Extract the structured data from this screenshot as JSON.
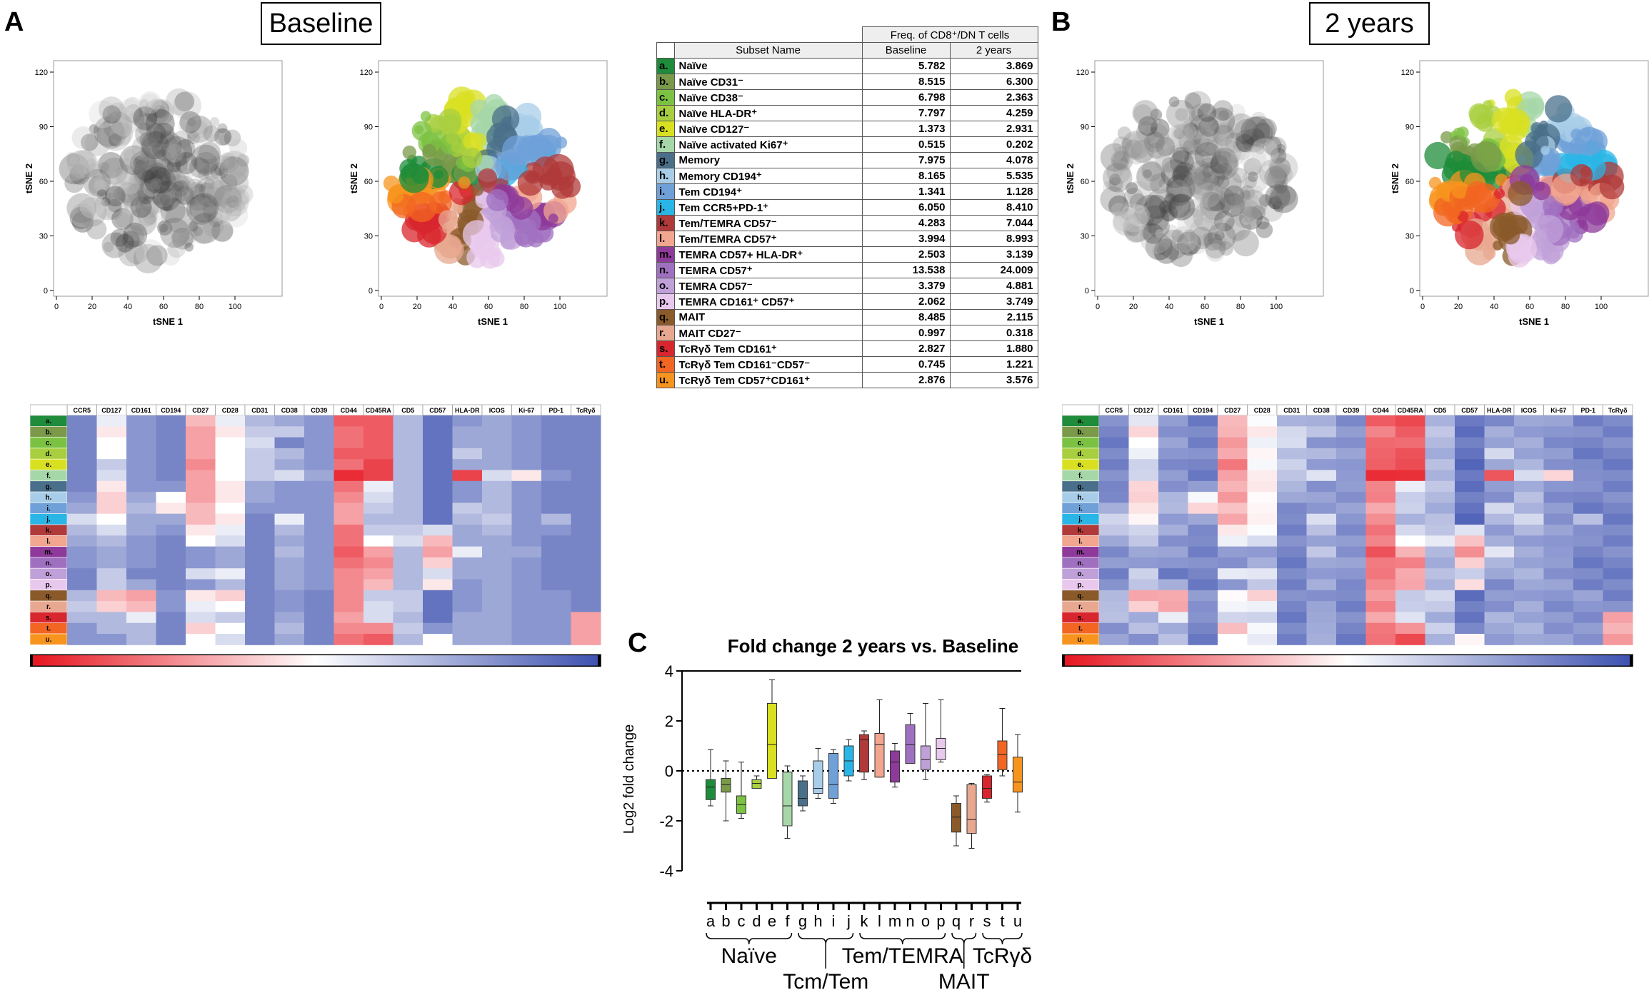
{
  "panels": {
    "A": {
      "letter": "A",
      "title": "Baseline"
    },
    "B": {
      "letter": "B",
      "title": "2 years"
    },
    "C": {
      "letter": "C"
    }
  },
  "tsne": {
    "xlabel": "tSNE 1",
    "ylabel": "tSNE 2",
    "xticks": [
      "0",
      "20",
      "40",
      "60",
      "80",
      "100"
    ],
    "yticks": [
      "0",
      "30",
      "60",
      "90",
      "120"
    ]
  },
  "table": {
    "header_group": "Freq. of CD8⁺/DN T cells",
    "col_subset": "Subset Name",
    "col_baseline": "Baseline",
    "col_2y": "2 years",
    "rows": [
      {
        "key": "a.",
        "name": "Naïve",
        "baseline": "5.782",
        "two": "3.869",
        "color": "#1e8c3a"
      },
      {
        "key": "b.",
        "name": "Naïve CD31⁻",
        "baseline": "8.515",
        "two": "6.300",
        "color": "#7a9a4a"
      },
      {
        "key": "c.",
        "name": "Naïve CD38⁻",
        "baseline": "6.798",
        "two": "2.363",
        "color": "#7cc242"
      },
      {
        "key": "d.",
        "name": "Naïve HLA-DR⁺",
        "baseline": "7.797",
        "two": "4.259",
        "color": "#a8cf3f"
      },
      {
        "key": "e.",
        "name": "Naïve CD127⁻",
        "baseline": "1.373",
        "two": "2.931",
        "color": "#d9e021"
      },
      {
        "key": "f.",
        "name": "Naïve activated Ki67⁺",
        "baseline": "0.515",
        "two": "0.202",
        "color": "#a6d7a8"
      },
      {
        "key": "g.",
        "name": "Memory",
        "baseline": "7.975",
        "two": "4.078",
        "color": "#4a6f8a"
      },
      {
        "key": "h.",
        "name": "Memory CD194⁺",
        "baseline": "8.165",
        "two": "5.535",
        "color": "#a8cde8"
      },
      {
        "key": "i.",
        "name": "Tem CD194⁺",
        "baseline": "1.341",
        "two": "1.128",
        "color": "#6fa0d8"
      },
      {
        "key": "j.",
        "name": "Tem CCR5+PD-1⁺",
        "baseline": "6.050",
        "two": "8.410",
        "color": "#29b6e6"
      },
      {
        "key": "k.",
        "name": "Tem/TEMRA CD57⁻",
        "baseline": "4.283",
        "two": "7.044",
        "color": "#b03a3a"
      },
      {
        "key": "l.",
        "name": "Tem/TEMRA CD57⁺",
        "baseline": "3.994",
        "two": "8.993",
        "color": "#f2a58f"
      },
      {
        "key": "m.",
        "name": "TEMRA CD57+ HLA-DR⁺",
        "baseline": "2.503",
        "two": "3.139",
        "color": "#8e3a9a"
      },
      {
        "key": "n.",
        "name": "TEMRA CD57⁺",
        "baseline": "13.538",
        "two": "24.009",
        "color": "#a070c0"
      },
      {
        "key": "o.",
        "name": "TEMRA CD57⁻",
        "baseline": "3.379",
        "two": "4.881",
        "color": "#c0a0d8"
      },
      {
        "key": "p.",
        "name": "TEMRA CD161⁺ CD57⁺",
        "baseline": "2.062",
        "two": "3.749",
        "color": "#e8c8ec"
      },
      {
        "key": "q.",
        "name": "MAIT",
        "baseline": "8.485",
        "two": "2.115",
        "color": "#8a5a2a"
      },
      {
        "key": "r.",
        "name": "MAIT CD27⁻",
        "baseline": "0.997",
        "two": "0.318",
        "color": "#e8a890"
      },
      {
        "key": "s.",
        "name": "TcRγδ Tem CD161⁺",
        "baseline": "2.827",
        "two": "1.880",
        "color": "#d8262e"
      },
      {
        "key": "t.",
        "name": "TcRγδ Tem CD161⁻CD57⁻",
        "baseline": "0.745",
        "two": "1.221",
        "color": "#f26522"
      },
      {
        "key": "u.",
        "name": "TcRγδ Tem CD57⁺CD161⁺",
        "baseline": "2.876",
        "two": "3.576",
        "color": "#f7941d"
      }
    ]
  },
  "heatmap": {
    "markers": [
      "CCR5",
      "CD127",
      "CD161",
      "CD194",
      "CD27",
      "CD28",
      "CD31",
      "CD38",
      "CD39",
      "CD44",
      "CD45RA",
      "CD5",
      "CD57",
      "HLA-DR",
      "ICOS",
      "Ki-67",
      "PD-1",
      "TcRγδ"
    ],
    "rows": [
      "a.",
      "b.",
      "c.",
      "d.",
      "e.",
      "f.",
      "g.",
      "h.",
      "i.",
      "j.",
      "k.",
      "l.",
      "m.",
      "n.",
      "o.",
      "p.",
      "q.",
      "r.",
      "s.",
      "t.",
      "u."
    ],
    "values_baseline": [
      [
        0.85,
        0.55,
        0.8,
        0.85,
        0.35,
        0.55,
        0.7,
        0.75,
        0.8,
        0.15,
        0.15,
        0.7,
        0.9,
        0.8,
        0.75,
        0.8,
        0.85,
        0.85
      ],
      [
        0.85,
        0.45,
        0.8,
        0.85,
        0.3,
        0.45,
        0.65,
        0.65,
        0.8,
        0.2,
        0.15,
        0.7,
        0.9,
        0.75,
        0.75,
        0.8,
        0.85,
        0.85
      ],
      [
        0.85,
        0.5,
        0.8,
        0.85,
        0.3,
        0.5,
        0.6,
        0.85,
        0.8,
        0.2,
        0.15,
        0.7,
        0.9,
        0.75,
        0.75,
        0.8,
        0.85,
        0.85
      ],
      [
        0.85,
        0.5,
        0.8,
        0.85,
        0.3,
        0.5,
        0.65,
        0.7,
        0.8,
        0.15,
        0.15,
        0.7,
        0.9,
        0.65,
        0.75,
        0.8,
        0.85,
        0.85
      ],
      [
        0.85,
        0.65,
        0.8,
        0.85,
        0.25,
        0.5,
        0.65,
        0.75,
        0.8,
        0.2,
        0.1,
        0.7,
        0.9,
        0.75,
        0.75,
        0.8,
        0.85,
        0.85
      ],
      [
        0.85,
        0.6,
        0.8,
        0.85,
        0.3,
        0.5,
        0.65,
        0.6,
        0.75,
        0.05,
        0.1,
        0.7,
        0.9,
        0.1,
        0.6,
        0.45,
        0.8,
        0.85
      ],
      [
        0.85,
        0.45,
        0.8,
        0.8,
        0.3,
        0.45,
        0.75,
        0.8,
        0.8,
        0.2,
        0.55,
        0.7,
        0.9,
        0.8,
        0.7,
        0.8,
        0.85,
        0.85
      ],
      [
        0.8,
        0.4,
        0.75,
        0.5,
        0.3,
        0.45,
        0.75,
        0.8,
        0.8,
        0.25,
        0.6,
        0.7,
        0.9,
        0.8,
        0.7,
        0.8,
        0.85,
        0.85
      ],
      [
        0.75,
        0.4,
        0.7,
        0.45,
        0.35,
        0.5,
        0.8,
        0.8,
        0.8,
        0.3,
        0.65,
        0.7,
        0.9,
        0.65,
        0.7,
        0.8,
        0.85,
        0.85
      ],
      [
        0.6,
        0.5,
        0.75,
        0.75,
        0.35,
        0.45,
        0.85,
        0.55,
        0.8,
        0.3,
        0.7,
        0.7,
        0.9,
        0.7,
        0.65,
        0.8,
        0.7,
        0.85
      ],
      [
        0.7,
        0.6,
        0.75,
        0.8,
        0.45,
        0.55,
        0.85,
        0.7,
        0.8,
        0.2,
        0.65,
        0.65,
        0.6,
        0.75,
        0.7,
        0.8,
        0.8,
        0.85
      ],
      [
        0.75,
        0.7,
        0.8,
        0.85,
        0.5,
        0.6,
        0.85,
        0.75,
        0.8,
        0.2,
        0.5,
        0.6,
        0.35,
        0.75,
        0.75,
        0.8,
        0.85,
        0.85
      ],
      [
        0.8,
        0.75,
        0.8,
        0.85,
        0.8,
        0.75,
        0.85,
        0.7,
        0.8,
        0.15,
        0.3,
        0.7,
        0.3,
        0.55,
        0.75,
        0.75,
        0.85,
        0.85
      ],
      [
        0.8,
        0.75,
        0.8,
        0.85,
        0.8,
        0.75,
        0.85,
        0.75,
        0.8,
        0.2,
        0.25,
        0.7,
        0.4,
        0.75,
        0.75,
        0.8,
        0.85,
        0.85
      ],
      [
        0.85,
        0.65,
        0.85,
        0.85,
        0.6,
        0.55,
        0.85,
        0.75,
        0.8,
        0.25,
        0.3,
        0.7,
        0.6,
        0.75,
        0.75,
        0.8,
        0.85,
        0.85
      ],
      [
        0.85,
        0.65,
        0.75,
        0.85,
        0.8,
        0.7,
        0.85,
        0.75,
        0.8,
        0.25,
        0.35,
        0.7,
        0.45,
        0.8,
        0.75,
        0.8,
        0.85,
        0.85
      ],
      [
        0.7,
        0.35,
        0.3,
        0.8,
        0.45,
        0.4,
        0.85,
        0.8,
        0.85,
        0.25,
        0.65,
        0.65,
        0.9,
        0.8,
        0.75,
        0.8,
        0.8,
        0.85
      ],
      [
        0.65,
        0.4,
        0.35,
        0.8,
        0.55,
        0.5,
        0.85,
        0.8,
        0.85,
        0.25,
        0.6,
        0.65,
        0.9,
        0.8,
        0.75,
        0.8,
        0.8,
        0.85
      ],
      [
        0.7,
        0.7,
        0.55,
        0.85,
        0.6,
        0.65,
        0.85,
        0.75,
        0.85,
        0.3,
        0.6,
        0.7,
        0.9,
        0.75,
        0.75,
        0.8,
        0.8,
        0.3
      ],
      [
        0.8,
        0.7,
        0.7,
        0.85,
        0.4,
        0.5,
        0.85,
        0.7,
        0.85,
        0.25,
        0.25,
        0.65,
        0.8,
        0.75,
        0.75,
        0.8,
        0.8,
        0.3
      ],
      [
        0.8,
        0.8,
        0.7,
        0.85,
        0.5,
        0.6,
        0.85,
        0.75,
        0.85,
        0.2,
        0.15,
        0.7,
        0.5,
        0.75,
        0.75,
        0.8,
        0.8,
        0.3
      ]
    ]
  },
  "chart_data": {
    "type": "box",
    "title": "Fold change 2 years vs. Baseline",
    "ylabel": "Log2 fold change",
    "ylim": [
      -4,
      4
    ],
    "yticks": [
      "4",
      "2",
      "0",
      "-2",
      "-4"
    ],
    "categories": [
      "a",
      "b",
      "c",
      "d",
      "e",
      "f",
      "g",
      "h",
      "i",
      "j",
      "k",
      "l",
      "m",
      "n",
      "o",
      "p",
      "q",
      "r",
      "s",
      "t",
      "u"
    ],
    "boxes": [
      {
        "min": -1.4,
        "q1": -1.15,
        "median": -0.65,
        "q3": -0.35,
        "max": 0.85
      },
      {
        "min": -2.0,
        "q1": -0.85,
        "median": -0.55,
        "q3": -0.3,
        "max": 0.4
      },
      {
        "min": -1.9,
        "q1": -1.7,
        "median": -1.35,
        "q3": -1.0,
        "max": 0.35
      },
      {
        "min": -0.7,
        "q1": -0.7,
        "median": -0.5,
        "q3": -0.35,
        "max": -0.2
      },
      {
        "min": -0.3,
        "q1": -0.3,
        "median": 1.05,
        "q3": 2.7,
        "max": 3.65
      },
      {
        "min": -2.7,
        "q1": -2.2,
        "median": -1.4,
        "q3": -0.05,
        "max": 0.2
      },
      {
        "min": -1.6,
        "q1": -1.4,
        "median": -1.1,
        "q3": -0.4,
        "max": -0.2
      },
      {
        "min": -1.1,
        "q1": -0.9,
        "median": -0.7,
        "q3": 0.4,
        "max": 0.9
      },
      {
        "min": -1.3,
        "q1": -1.1,
        "median": -0.55,
        "q3": 0.7,
        "max": 0.85
      },
      {
        "min": -0.4,
        "q1": -0.2,
        "median": 0.4,
        "q3": 1.0,
        "max": 1.25
      },
      {
        "min": -0.35,
        "q1": -0.05,
        "median": 1.25,
        "q3": 1.45,
        "max": 1.6
      },
      {
        "min": -0.25,
        "q1": -0.25,
        "median": 1.05,
        "q3": 1.5,
        "max": 2.85
      },
      {
        "min": -0.65,
        "q1": -0.45,
        "median": 0.35,
        "q3": 0.8,
        "max": 1.1
      },
      {
        "min": 0.3,
        "q1": 0.3,
        "median": 1.05,
        "q3": 1.85,
        "max": 2.3
      },
      {
        "min": -0.35,
        "q1": 0.05,
        "median": 0.45,
        "q3": 1.0,
        "max": 2.7
      },
      {
        "min": 0.35,
        "q1": 0.45,
        "median": 0.9,
        "q3": 1.3,
        "max": 2.85
      },
      {
        "min": -3.0,
        "q1": -2.45,
        "median": -1.85,
        "q3": -1.3,
        "max": -1.0
      },
      {
        "min": -3.1,
        "q1": -2.5,
        "median": -1.95,
        "q3": -0.55,
        "max": -0.5
      },
      {
        "min": -1.25,
        "q1": -1.1,
        "median": -0.7,
        "q3": -0.2,
        "max": -0.15
      },
      {
        "min": -0.2,
        "q1": 0.05,
        "median": 0.65,
        "q3": 1.2,
        "max": 2.5
      },
      {
        "min": -1.65,
        "q1": -0.85,
        "median": -0.45,
        "q3": 0.55,
        "max": 1.45
      }
    ],
    "group_labels": [
      {
        "text": "Naïve",
        "from": 0,
        "to": 5,
        "row": 1
      },
      {
        "text": "Tcm/Tem",
        "from": 6,
        "to": 9,
        "row": 2
      },
      {
        "text": "Tem/TEMRA",
        "from": 10,
        "to": 15,
        "row": 1
      },
      {
        "text": "MAIT",
        "from": 16,
        "to": 17,
        "row": 2
      },
      {
        "text": "TcRγδ",
        "from": 18,
        "to": 20,
        "row": 1
      }
    ]
  }
}
